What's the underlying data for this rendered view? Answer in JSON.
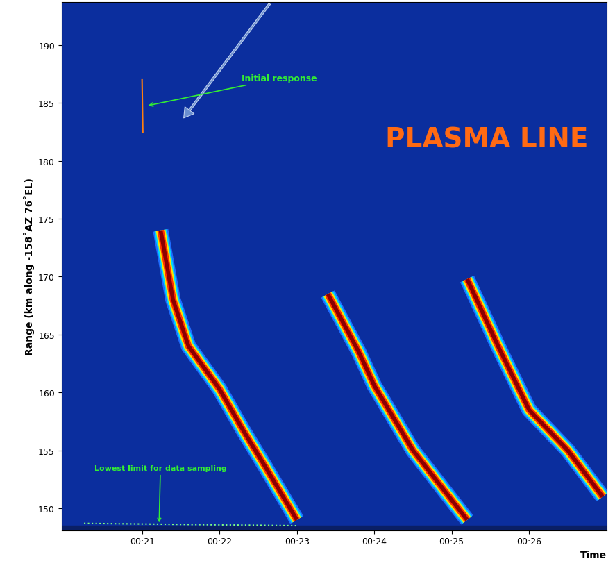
{
  "chart_data": {
    "type": "line",
    "title": "PLASMA LINE",
    "y_label": "Range (km along -158˚AZ 76˚EL)",
    "x_label": "Time",
    "xlim": [
      19.96,
      27.0
    ],
    "xticks": [
      {
        "value": 21,
        "label": "00:21"
      },
      {
        "value": 22,
        "label": "00:22"
      },
      {
        "value": 23,
        "label": "00:23"
      },
      {
        "value": 24,
        "label": "00:24"
      },
      {
        "value": 25,
        "label": "00:25"
      },
      {
        "value": 26,
        "label": "00:26"
      }
    ],
    "ylim": [
      148.1,
      193.7
    ],
    "yticks": [
      150,
      155,
      160,
      165,
      170,
      175,
      180,
      185,
      190
    ],
    "series": [
      {
        "type": "band",
        "color": "#8b0000",
        "x": [
          21.24,
          21.4,
          21.6,
          22.0,
          22.3,
          22.6,
          23.0
        ],
        "values": [
          174,
          168,
          164,
          160.3,
          156.8,
          153.5,
          149.0
        ]
      },
      {
        "type": "band",
        "color": "#8b0000",
        "x": [
          23.4,
          23.8,
          24.0,
          24.5,
          25.2
        ],
        "values": [
          168.5,
          163.5,
          160.6,
          155,
          149.0
        ]
      },
      {
        "type": "band",
        "color": "#8b0000",
        "x": [
          25.2,
          25.6,
          26.0,
          26.5,
          26.95
        ],
        "values": [
          169.8,
          164,
          158.5,
          155,
          151
        ]
      },
      {
        "type": "line",
        "color": "#ff7f0e",
        "x": [
          21.0,
          21.01
        ],
        "values": [
          187,
          182.5
        ]
      },
      {
        "type": "line",
        "color": "#7fff7f",
        "line_style": "dotted",
        "x": [
          20.25,
          22.99
        ],
        "values": [
          148.7,
          148.5
        ]
      }
    ],
    "annotations": [
      "Initial response",
      "Lowest limit for data sampling"
    ]
  }
}
